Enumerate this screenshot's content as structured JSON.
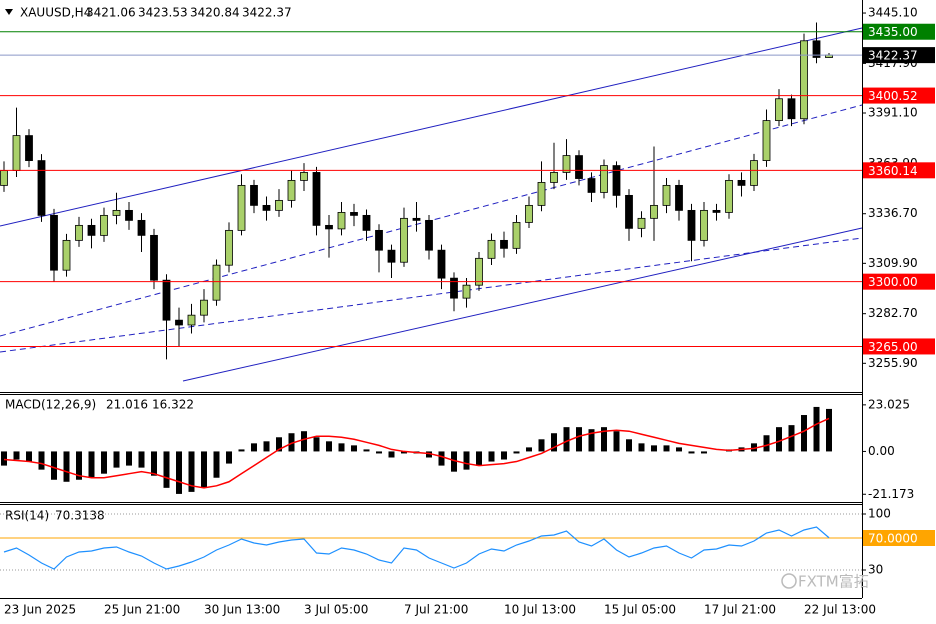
{
  "chart_data": [
    {
      "type": "candlestick",
      "symbol": "XAUUSD,H4",
      "watermark": "FXTM富拓",
      "ylim": [
        3240.4,
        3451.6
      ],
      "yticks": [
        {
          "value": 3445.1,
          "label": "3445.10"
        },
        {
          "value": 3417.9,
          "label": "3417.90"
        },
        {
          "value": 3391.1,
          "label": "3391.10"
        },
        {
          "value": 3363.9,
          "label": "3363.90"
        },
        {
          "value": 3336.7,
          "label": "3336.70"
        },
        {
          "value": 3309.9,
          "label": "3309.90"
        },
        {
          "value": 3282.7,
          "label": "3282.70"
        },
        {
          "value": 3255.9,
          "label": "3255.90"
        }
      ],
      "levels": [
        {
          "value": 3435,
          "label": "3435.00",
          "color": "#008000"
        },
        {
          "value": 3400.52,
          "color": "#ff0000"
        },
        {
          "value": 3360.14,
          "color": "#ff0000"
        },
        {
          "value": 3300,
          "label": "3300.00",
          "color": "#ff0000"
        },
        {
          "value": 3265,
          "label": "3265.00",
          "color": "#ff0000"
        }
      ],
      "bid": 3422.37,
      "bid_line_color": "#8a96c8",
      "bid_box_color": "#000000",
      "up_color": "#a9d06a",
      "down_color": "#000000",
      "categories": [
        "23 Jun 2025",
        null,
        null,
        null,
        null,
        null,
        null,
        null,
        "25 Jun 21:00",
        null,
        null,
        null,
        null,
        null,
        null,
        null,
        "30 Jun 13:00",
        null,
        null,
        null,
        null,
        null,
        null,
        null,
        "3 Jul 05:00",
        null,
        null,
        null,
        null,
        null,
        null,
        null,
        "7 Jul 21:00",
        null,
        null,
        null,
        null,
        null,
        null,
        null,
        "10 Jul 13:00",
        null,
        null,
        null,
        null,
        null,
        null,
        null,
        "15 Jul 05:00",
        null,
        null,
        null,
        null,
        null,
        null,
        null,
        "17 Jul 21:00",
        null,
        null,
        null,
        null,
        null,
        null,
        null,
        "22 Jul 13:00",
        null,
        null
      ],
      "open": [
        3352.0,
        3360.0,
        3378.9,
        3365.4,
        3335.8,
        3306.2,
        3322.3,
        3330.4,
        3325.0,
        3335.8,
        3338.5,
        3333.1,
        3325.0,
        3300.8,
        3279.2,
        3276.6,
        3281.9,
        3290.0,
        3308.9,
        3327.7,
        3352.0,
        3341.2,
        3338.5,
        3343.9,
        3354.7,
        3359.0,
        3330.4,
        3328.5,
        3337.4,
        3335.8,
        3327.7,
        3317.0,
        3310.5,
        3334.2,
        3333.1,
        3317.0,
        3301.9,
        3291.1,
        3298.1,
        3312.6,
        3322.3,
        3318.0,
        3332.0,
        3341.2,
        3353.6,
        3359.0,
        3368.1,
        3355.7,
        3348.2,
        3362.7,
        3346.6,
        3328.8,
        3334.2,
        3341.2,
        3352.0,
        3338.5,
        3322.3,
        3338.5,
        3337.4,
        3354.7,
        3352.0,
        3365.4,
        3387.0,
        3398.8,
        3388.0,
        3430.1,
        3421.06
      ],
      "high": [
        3365.0,
        3394.0,
        3382.4,
        3368.9,
        3339.3,
        3325.8,
        3335.0,
        3334.0,
        3340.0,
        3348.0,
        3343.0,
        3337.0,
        3328.5,
        3304.0,
        3286.0,
        3288.0,
        3296.0,
        3312.0,
        3332.0,
        3358.0,
        3355.0,
        3346.0,
        3350.0,
        3360.0,
        3364.0,
        3362.0,
        3336.0,
        3343.0,
        3342.0,
        3339.0,
        3331.0,
        3320.0,
        3340.0,
        3343.0,
        3336.0,
        3320.0,
        3305.0,
        3302.0,
        3316.0,
        3326.0,
        3327.0,
        3336.0,
        3346.0,
        3365.0,
        3375.0,
        3377.0,
        3371.0,
        3359.0,
        3366.0,
        3365.0,
        3350.0,
        3338.0,
        3373.0,
        3356.0,
        3355.0,
        3342.0,
        3343.0,
        3342.0,
        3358.0,
        3359.0,
        3369.0,
        3393.0,
        3404.0,
        3401.0,
        3434.0,
        3440.0,
        3423.53
      ],
      "low": [
        3348.5,
        3356.5,
        3361.9,
        3332.3,
        3300.0,
        3302.7,
        3318.8,
        3318.0,
        3321.5,
        3331.0,
        3328.0,
        3316.0,
        3296.0,
        3258.0,
        3265.0,
        3272.0,
        3278.0,
        3287.0,
        3305.0,
        3325.0,
        3337.0,
        3333.0,
        3335.0,
        3340.0,
        3349.0,
        3325.0,
        3313.0,
        3325.0,
        3330.0,
        3322.0,
        3305.0,
        3302.0,
        3308.0,
        3327.0,
        3312.0,
        3296.0,
        3284.0,
        3286.0,
        3295.0,
        3309.0,
        3313.0,
        3315.0,
        3329.0,
        3338.0,
        3350.0,
        3355.0,
        3352.0,
        3343.0,
        3345.0,
        3340.0,
        3322.0,
        3324.0,
        3322.0,
        3337.0,
        3333.0,
        3311.0,
        3319.0,
        3333.0,
        3334.0,
        3346.0,
        3349.0,
        3362.0,
        3384.0,
        3384.0,
        3385.0,
        3418.0,
        3420.84
      ],
      "close": [
        3360.0,
        3378.9,
        3365.4,
        3335.8,
        3306.2,
        3322.3,
        3330.4,
        3325.0,
        3335.8,
        3338.5,
        3333.1,
        3325.0,
        3300.8,
        3279.2,
        3276.6,
        3281.9,
        3290.0,
        3308.9,
        3327.7,
        3352.0,
        3341.2,
        3338.5,
        3343.9,
        3354.7,
        3359.0,
        3330.4,
        3328.5,
        3337.4,
        3335.8,
        3327.7,
        3317.0,
        3310.5,
        3334.2,
        3333.1,
        3317.0,
        3301.9,
        3291.1,
        3298.1,
        3312.6,
        3322.3,
        3318.0,
        3332.0,
        3341.2,
        3353.6,
        3359.0,
        3368.1,
        3355.7,
        3348.2,
        3362.7,
        3346.6,
        3328.8,
        3334.2,
        3341.2,
        3352.0,
        3338.5,
        3322.3,
        3338.5,
        3337.4,
        3354.7,
        3352.0,
        3365.4,
        3387.0,
        3398.8,
        3388.0,
        3430.1,
        3421.1,
        3422.37
      ]
    },
    {
      "type": "macd",
      "title": "MACD(12,26,9)",
      "ylim": [
        -25.0,
        27.9
      ],
      "yticks": [
        23.025,
        {
          "value": 0,
          "label": "0.00"
        },
        -21.173
      ],
      "histogram": {
        "color": "#000000",
        "values": [
          -7,
          -4,
          -5,
          -9,
          -14,
          -15,
          -14,
          -13,
          -11,
          -8,
          -7,
          -8,
          -12,
          -18,
          -21,
          -20,
          -18,
          -13,
          -6,
          1,
          4,
          5,
          7,
          9,
          10,
          7,
          5,
          4,
          3,
          1,
          -1,
          -3,
          -1,
          -1,
          -3,
          -7,
          -10,
          -9,
          -7,
          -5,
          -4,
          -1,
          2,
          6,
          9,
          12,
          12,
          11,
          12,
          10,
          6,
          4,
          3,
          3,
          2,
          -1,
          -1,
          0,
          1,
          2,
          4,
          8,
          12,
          13,
          18,
          22,
          21.016
        ]
      },
      "signal": {
        "color": "#ff0000",
        "values": [
          -4,
          -4.5,
          -5,
          -6,
          -8,
          -10,
          -12,
          -13,
          -13,
          -12,
          -11,
          -10,
          -11,
          -13,
          -15,
          -17,
          -18,
          -17,
          -15,
          -11,
          -7,
          -3,
          1,
          4,
          6,
          7.5,
          7.5,
          7,
          6,
          4.5,
          3,
          1,
          0,
          -0.5,
          -1,
          -2.5,
          -4.5,
          -6,
          -7,
          -6.5,
          -6,
          -5,
          -3,
          -1,
          2,
          5,
          7.5,
          9,
          10,
          10.5,
          10,
          8.5,
          7,
          5.5,
          4,
          3,
          2,
          1,
          0.5,
          1,
          1.5,
          3,
          5,
          7.5,
          10,
          13.5,
          16.322
        ]
      }
    },
    {
      "type": "line",
      "title": "RSI(14)",
      "color": "#1e90ff",
      "ylim": [
        -5,
        111.25
      ],
      "yticks": [
        100,
        30
      ],
      "grid": true,
      "level": {
        "value": 70,
        "label": "70.0000",
        "color": "#ffa500"
      },
      "values": [
        52.5,
        57.5,
        48.75,
        38.75,
        31.25,
        46.25,
        52.5,
        53.75,
        57.5,
        58.75,
        52.5,
        47.5,
        38.75,
        31.25,
        35,
        40,
        46.25,
        55,
        61.25,
        68.75,
        63.75,
        61.25,
        65,
        67.5,
        68.75,
        51.25,
        50,
        57.5,
        55,
        50,
        42.5,
        38.75,
        57.5,
        55,
        45,
        38.75,
        32.5,
        38.75,
        50,
        56.25,
        53.75,
        61.25,
        66.25,
        72.5,
        73.75,
        78.75,
        65,
        60,
        68.75,
        55,
        46.25,
        51.25,
        57.5,
        60,
        51.25,
        45,
        55,
        56.25,
        61.25,
        60,
        66.25,
        76.25,
        80,
        72.5,
        80,
        83.75,
        70.3138
      ]
    }
  ]
}
